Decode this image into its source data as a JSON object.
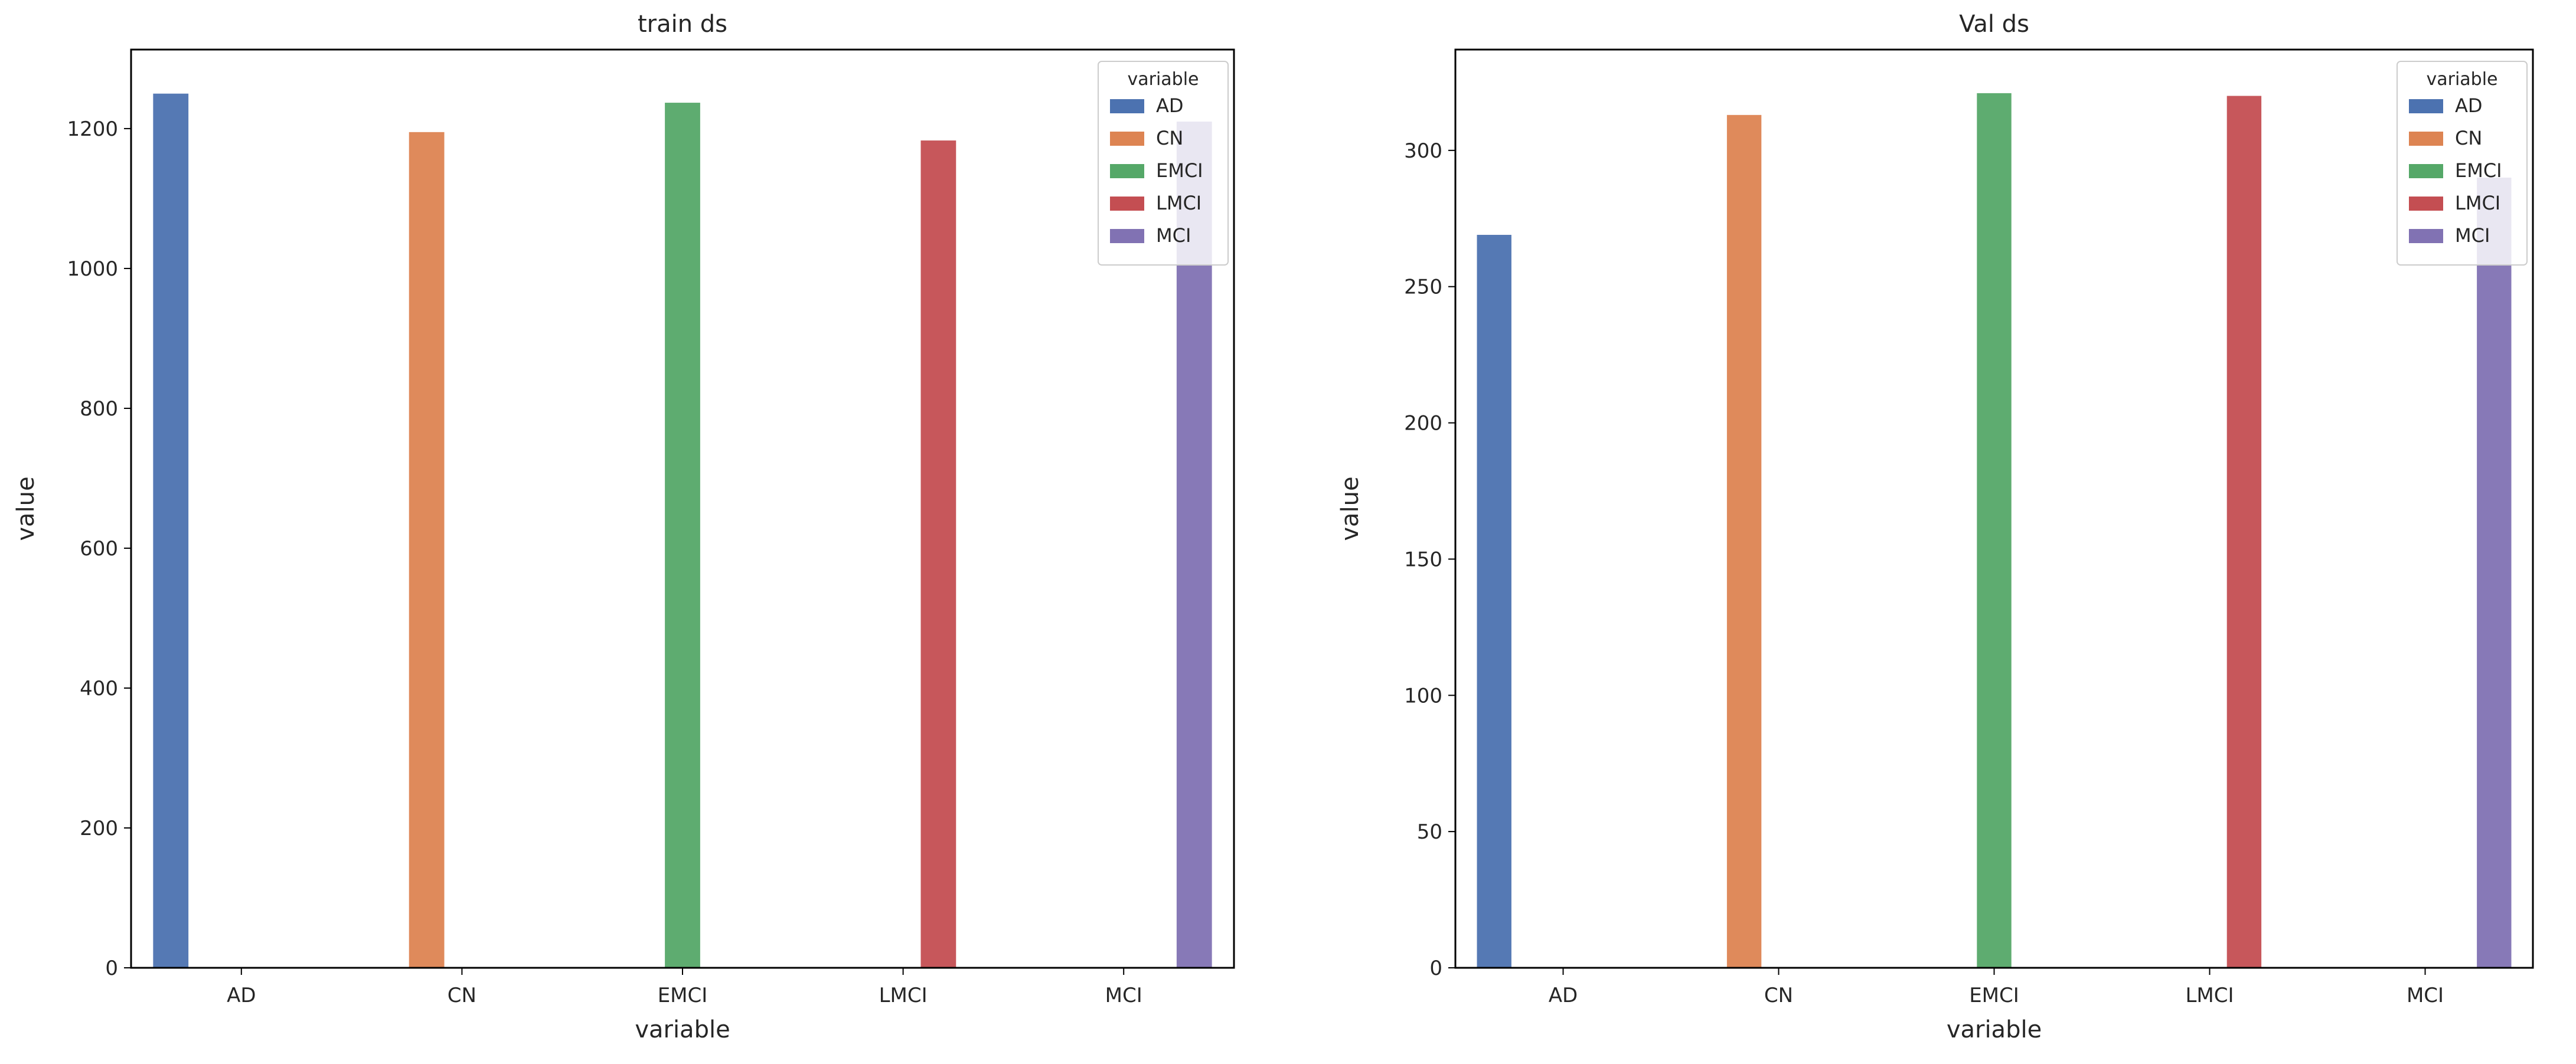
{
  "chart_data": [
    {
      "type": "bar",
      "title": "train ds",
      "xlabel": "variable",
      "ylabel": "value",
      "categories": [
        "AD",
        "CN",
        "EMCI",
        "LMCI",
        "MCI"
      ],
      "series": [
        {
          "name": "AD",
          "color": "#4c72b0",
          "values": [
            1250,
            0,
            0,
            0,
            0
          ]
        },
        {
          "name": "CN",
          "color": "#dd8452",
          "values": [
            0,
            1195,
            0,
            0,
            0
          ]
        },
        {
          "name": "EMCI",
          "color": "#55a868",
          "values": [
            0,
            0,
            1237,
            0,
            0
          ]
        },
        {
          "name": "LMCI",
          "color": "#c44e52",
          "values": [
            0,
            0,
            0,
            1183,
            0
          ]
        },
        {
          "name": "MCI",
          "color": "#8172b3",
          "values": [
            0,
            0,
            0,
            0,
            1210
          ]
        }
      ],
      "ylim": [
        0,
        1313
      ],
      "yticks": [
        0,
        200,
        400,
        600,
        800,
        1000,
        1200
      ],
      "legend": {
        "title": "variable",
        "loc": "upper right"
      },
      "grid": false
    },
    {
      "type": "bar",
      "title": "Val ds",
      "xlabel": "variable",
      "ylabel": "value",
      "categories": [
        "AD",
        "CN",
        "EMCI",
        "LMCI",
        "MCI"
      ],
      "series": [
        {
          "name": "AD",
          "color": "#4c72b0",
          "values": [
            269,
            0,
            0,
            0,
            0
          ]
        },
        {
          "name": "CN",
          "color": "#dd8452",
          "values": [
            0,
            313,
            0,
            0,
            0
          ]
        },
        {
          "name": "EMCI",
          "color": "#55a868",
          "values": [
            0,
            0,
            321,
            0,
            0
          ]
        },
        {
          "name": "LMCI",
          "color": "#c44e52",
          "values": [
            0,
            0,
            0,
            320,
            0
          ]
        },
        {
          "name": "MCI",
          "color": "#8172b3",
          "values": [
            0,
            0,
            0,
            0,
            290
          ]
        }
      ],
      "ylim": [
        0,
        337
      ],
      "yticks": [
        0,
        50,
        100,
        150,
        200,
        250,
        300
      ],
      "legend": {
        "title": "variable",
        "loc": "upper right"
      },
      "grid": false
    }
  ]
}
